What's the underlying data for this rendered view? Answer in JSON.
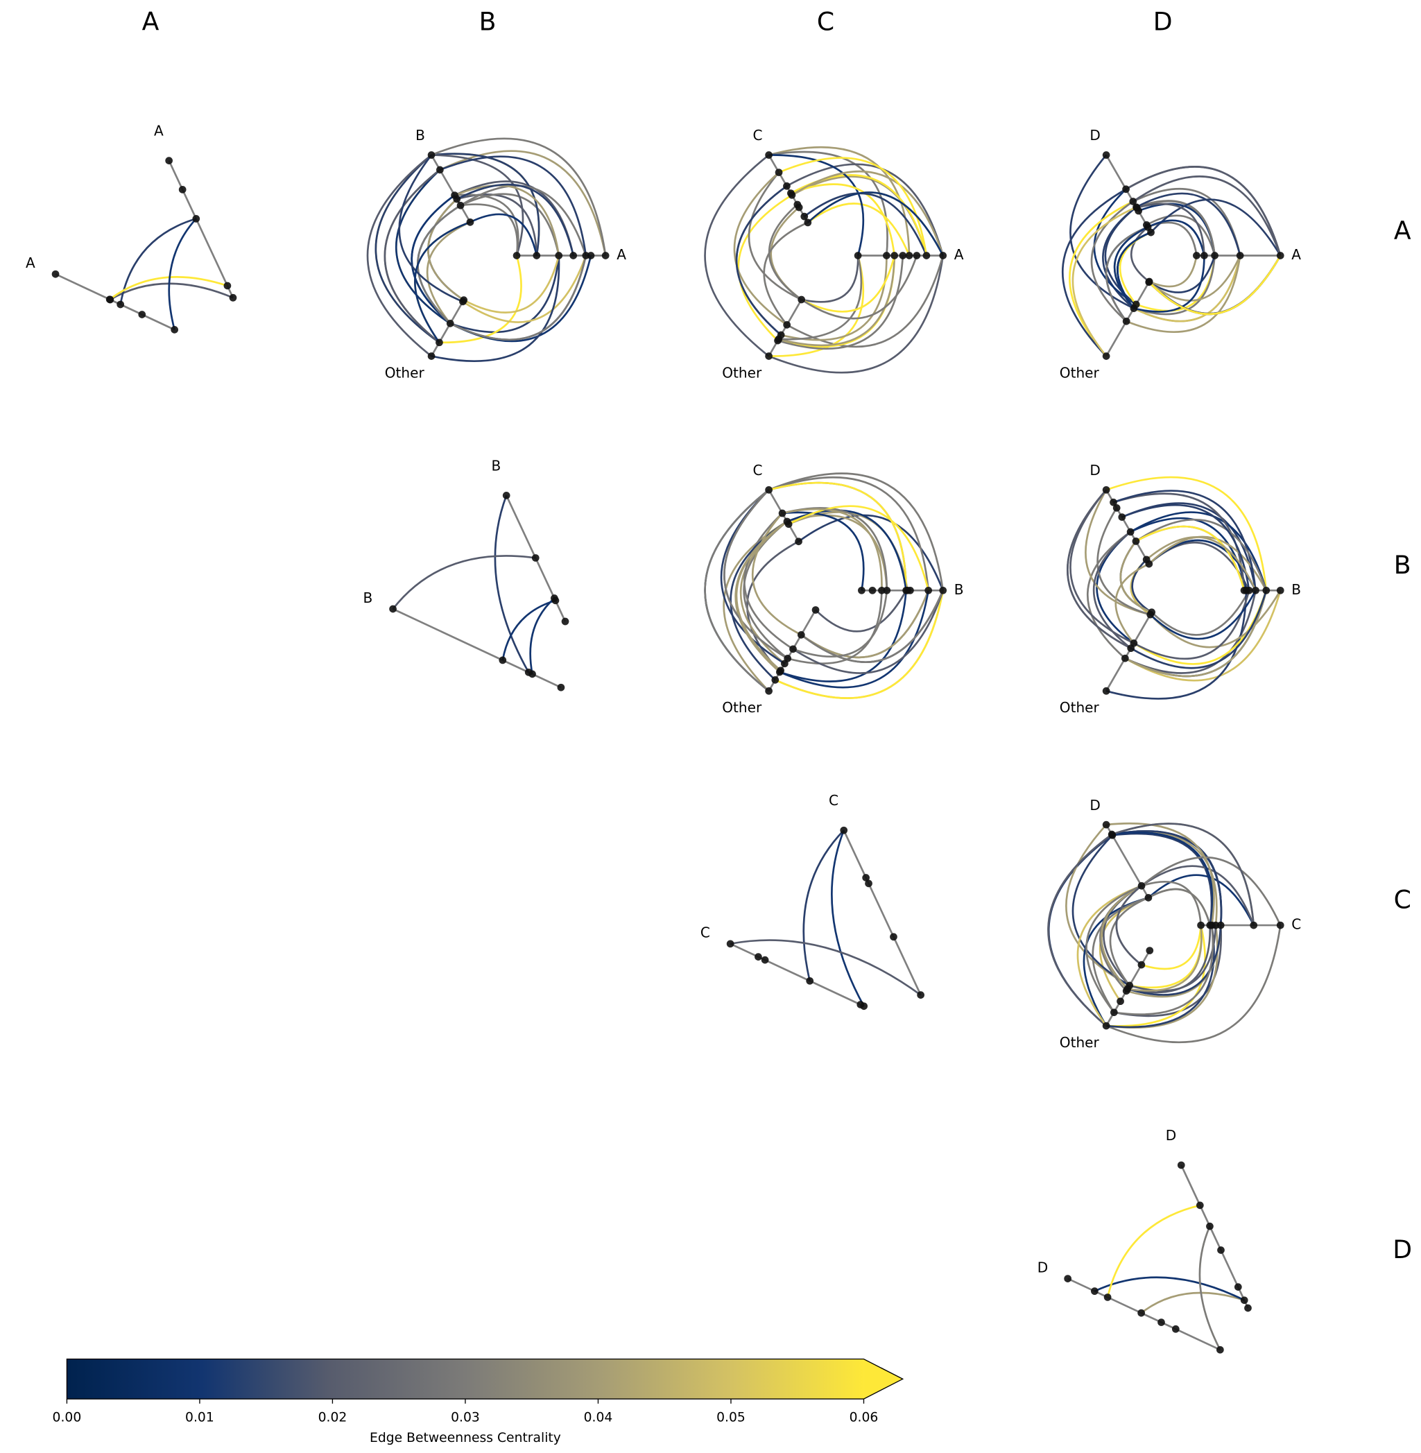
{
  "column_labels": [
    "A",
    "B",
    "C",
    "D"
  ],
  "row_labels": [
    "A",
    "B",
    "C",
    "D"
  ],
  "panels": [
    {
      "axis_labels": [
        "A",
        "A"
      ]
    },
    {
      "axis_labels": [
        "A",
        "B",
        "Other"
      ]
    },
    {
      "axis_labels": [
        "A",
        "C",
        "Other"
      ]
    },
    {
      "axis_labels": [
        "A",
        "D",
        "Other"
      ]
    },
    {
      "axis_labels": [
        "B",
        "B"
      ]
    },
    {
      "axis_labels": [
        "B",
        "C",
        "Other"
      ]
    },
    {
      "axis_labels": [
        "B",
        "D",
        "Other"
      ]
    },
    {
      "axis_labels": [
        "C",
        "C"
      ]
    },
    {
      "axis_labels": [
        "C",
        "D",
        "Other"
      ]
    },
    {
      "axis_labels": [
        "D",
        "D"
      ]
    }
  ],
  "colorbar": {
    "label": "Edge Betweenness Centrality",
    "lim": [
      0,
      0.06
    ],
    "extend": "max",
    "ticks": [
      {
        "value": 0,
        "label": "0.00"
      },
      {
        "value": 0.01,
        "label": "0.01"
      },
      {
        "value": 0.02,
        "label": "0.02"
      },
      {
        "value": 0.03,
        "label": "0.03"
      },
      {
        "value": 0.04,
        "label": "0.04"
      },
      {
        "value": 0.05,
        "label": "0.05"
      },
      {
        "value": 0.06,
        "label": "0.06"
      }
    ]
  }
}
